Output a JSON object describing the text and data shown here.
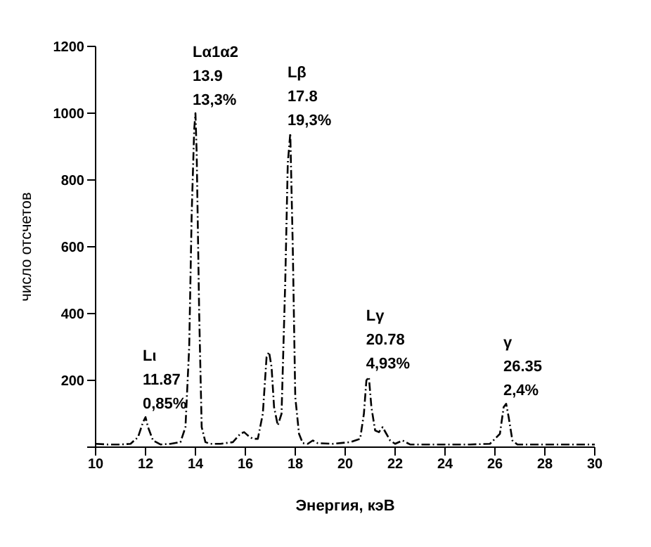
{
  "chart_data": {
    "type": "line",
    "xlabel": "Энергия, кэВ",
    "ylabel": "число отсчетов",
    "x": [
      10,
      10.5,
      11,
      11.4,
      11.7,
      11.9,
      12,
      12.1,
      12.3,
      12.6,
      13,
      13.4,
      13.6,
      13.75,
      13.85,
      13.95,
      14.0,
      14.05,
      14.15,
      14.25,
      14.4,
      14.6,
      15,
      15.5,
      15.8,
      15.95,
      16.1,
      16.3,
      16.5,
      16.7,
      16.85,
      16.95,
      17.05,
      17.15,
      17.3,
      17.45,
      17.6,
      17.7,
      17.8,
      17.9,
      18.0,
      18.15,
      18.3,
      18.5,
      18.7,
      18.9,
      19.5,
      20.2,
      20.6,
      20.75,
      20.85,
      20.95,
      21.05,
      21.2,
      21.35,
      21.5,
      21.65,
      21.8,
      22.0,
      22.3,
      22.6,
      23,
      24,
      25,
      25.8,
      26.2,
      26.35,
      26.45,
      26.55,
      26.7,
      26.9,
      27.5,
      28.5,
      30
    ],
    "series": [
      {
        "color": "#000000",
        "values": [
          10,
          8,
          8,
          10,
          30,
          75,
          90,
          60,
          20,
          8,
          10,
          15,
          60,
          300,
          700,
          950,
          1000,
          880,
          400,
          60,
          15,
          10,
          10,
          15,
          40,
          45,
          35,
          25,
          25,
          100,
          270,
          285,
          240,
          120,
          65,
          100,
          500,
          850,
          940,
          600,
          150,
          40,
          12,
          10,
          20,
          12,
          10,
          15,
          25,
          100,
          200,
          210,
          120,
          50,
          45,
          60,
          40,
          20,
          10,
          20,
          8,
          8,
          8,
          8,
          10,
          40,
          120,
          130,
          90,
          20,
          8,
          8,
          8,
          8
        ]
      }
    ],
    "xlim": [
      10,
      30
    ],
    "xticks": [
      10,
      12,
      14,
      16,
      18,
      20,
      22,
      24,
      26,
      28,
      30
    ],
    "ylim": [
      0,
      1200
    ],
    "yticks": [
      {
        "value": 0,
        "label": null
      },
      200,
      400,
      600,
      800,
      1000,
      1200
    ],
    "line_style": "dashed",
    "marker": "none",
    "annotations": [
      {
        "text": "Lι\n11.87\n0,85%",
        "x": 12,
        "y": 90
      },
      {
        "text": "Lα1α2\n13.9\n13,3%",
        "x": 14.0,
        "y": 1000
      },
      {
        "text": "Lβ\n17.8\n19,3%",
        "x": 17.8,
        "y": 940
      },
      {
        "text": "Lγ\n20.78\n4,93%",
        "x": 20.95,
        "y": 210
      },
      {
        "text": "γ\n26.35\n2,4%",
        "x": 26.45,
        "y": 130
      }
    ]
  }
}
